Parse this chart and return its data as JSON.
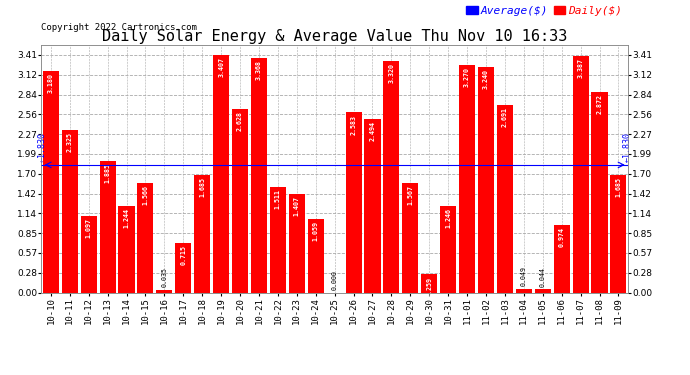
{
  "title": "Daily Solar Energy & Average Value Thu Nov 10 16:33",
  "copyright": "Copyright 2022 Cartronics.com",
  "average_label": "Average($)",
  "daily_label": "Daily($)",
  "average_value": 1.83,
  "categories": [
    "10-10",
    "10-11",
    "10-12",
    "10-13",
    "10-14",
    "10-15",
    "10-16",
    "10-17",
    "10-18",
    "10-19",
    "10-20",
    "10-21",
    "10-22",
    "10-23",
    "10-24",
    "10-25",
    "10-26",
    "10-27",
    "10-28",
    "10-29",
    "10-30",
    "10-31",
    "11-01",
    "11-02",
    "11-03",
    "11-04",
    "11-05",
    "11-06",
    "11-07",
    "11-08",
    "11-09"
  ],
  "values": [
    3.18,
    2.325,
    1.097,
    1.885,
    1.244,
    1.566,
    0.035,
    0.715,
    1.685,
    3.407,
    2.628,
    3.368,
    1.511,
    1.407,
    1.059,
    0.0,
    2.583,
    2.494,
    3.32,
    1.567,
    0.259,
    1.246,
    3.27,
    3.24,
    2.691,
    0.049,
    0.044,
    0.974,
    3.387,
    2.872,
    1.685
  ],
  "bar_color": "#ff0000",
  "avg_line_color": "#0000ff",
  "background_color": "#ffffff",
  "grid_color": "#aaaaaa",
  "ylim_max": 3.55,
  "yticks": [
    0.0,
    0.28,
    0.57,
    0.85,
    1.14,
    1.42,
    1.7,
    1.99,
    2.27,
    2.56,
    2.84,
    3.12,
    3.41
  ],
  "title_fontsize": 11,
  "copyright_fontsize": 6.5,
  "legend_fontsize": 8,
  "tick_fontsize": 6.5,
  "bar_label_fontsize": 4.8,
  "avg_annotation_fontsize": 6
}
